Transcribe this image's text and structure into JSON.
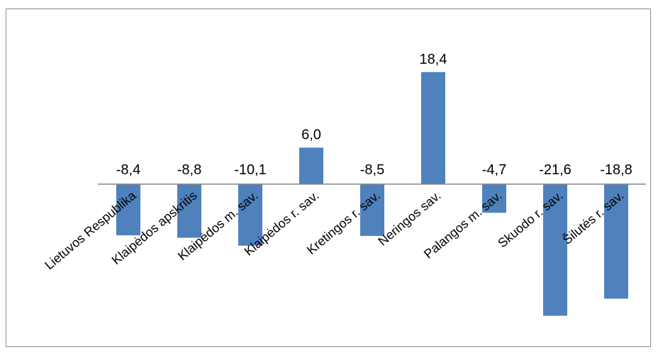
{
  "chart_data": {
    "type": "bar",
    "title": "",
    "xlabel": "",
    "ylabel": "",
    "categories": [
      "Lietuvos Respublika",
      "Klaipėdos apskritis",
      "Klaipėdos m. sav.",
      "Klaipėdos r. sav.",
      "Kretingos r. sav.",
      "Neringos sav.",
      "Palangos m. sav.",
      "Skuodo r. sav.",
      "Šilutės r. sav."
    ],
    "values": [
      -8.4,
      -8.8,
      -10.1,
      6.0,
      -8.5,
      18.4,
      -4.7,
      -21.6,
      -18.8
    ],
    "value_labels": [
      "-8,4",
      "-8,8",
      "-10,1",
      "6,0",
      "-8,5",
      "18,4",
      "-4,7",
      "-21,6",
      "-18,8"
    ],
    "bar_color": "#4f81bd",
    "axis_color": "#868686",
    "ylim": [
      -22,
      19
    ],
    "grid": false,
    "legend": "none"
  }
}
